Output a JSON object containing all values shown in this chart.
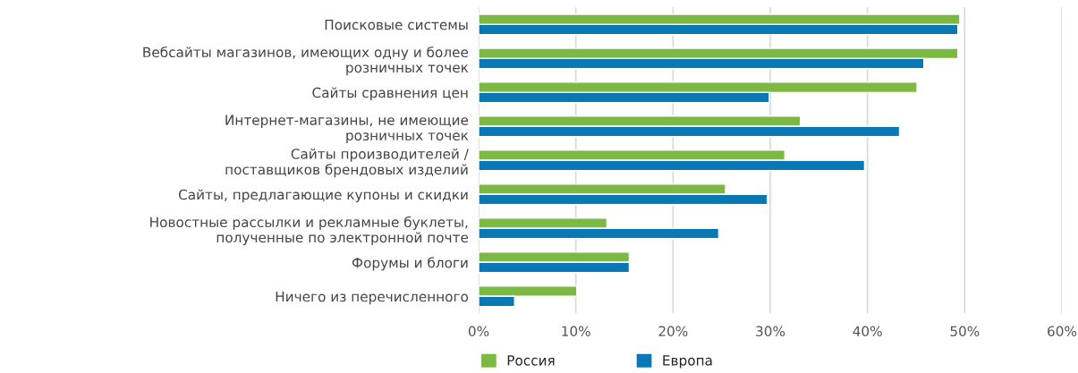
{
  "chart_data": {
    "type": "bar",
    "orientation": "horizontal",
    "categories": [
      "Поисковые системы",
      "Вебсайты магазинов, имеющих одну и более\nрозничных точек",
      "Сайты сравнения цен",
      "Интернет-магазины, не имеющие\nрозничных точек",
      "Сайты производителей /\nпоставщиков брендовых изделий",
      "Сайты, предлагающие купоны и скидки",
      "Новостные рассылки и рекламные буклеты,\nполученные по электронной почте",
      "Форумы и блоги",
      "Ничего из перечисленного"
    ],
    "series": [
      {
        "name": "Россия",
        "color": "#7cb943",
        "values": [
          49.5,
          49.3,
          45.1,
          33.1,
          31.5,
          25.4,
          13.2,
          15.5,
          10.1
        ]
      },
      {
        "name": "Европа",
        "color": "#0a78b5",
        "values": [
          49.3,
          45.8,
          29.9,
          43.3,
          39.7,
          29.7,
          24.7,
          15.5,
          3.7
        ]
      }
    ],
    "xlim": [
      0,
      60
    ],
    "xticks": [
      {
        "value": 0,
        "label": "0%"
      },
      {
        "value": 10,
        "label": "10%"
      },
      {
        "value": 20,
        "label": "20%"
      },
      {
        "value": 30,
        "label": "30%"
      },
      {
        "value": 40,
        "label": "40%"
      },
      {
        "value": 50,
        "label": "50%"
      },
      {
        "value": 60,
        "label": "60%"
      }
    ],
    "grid": "x",
    "legend": "bottom"
  }
}
